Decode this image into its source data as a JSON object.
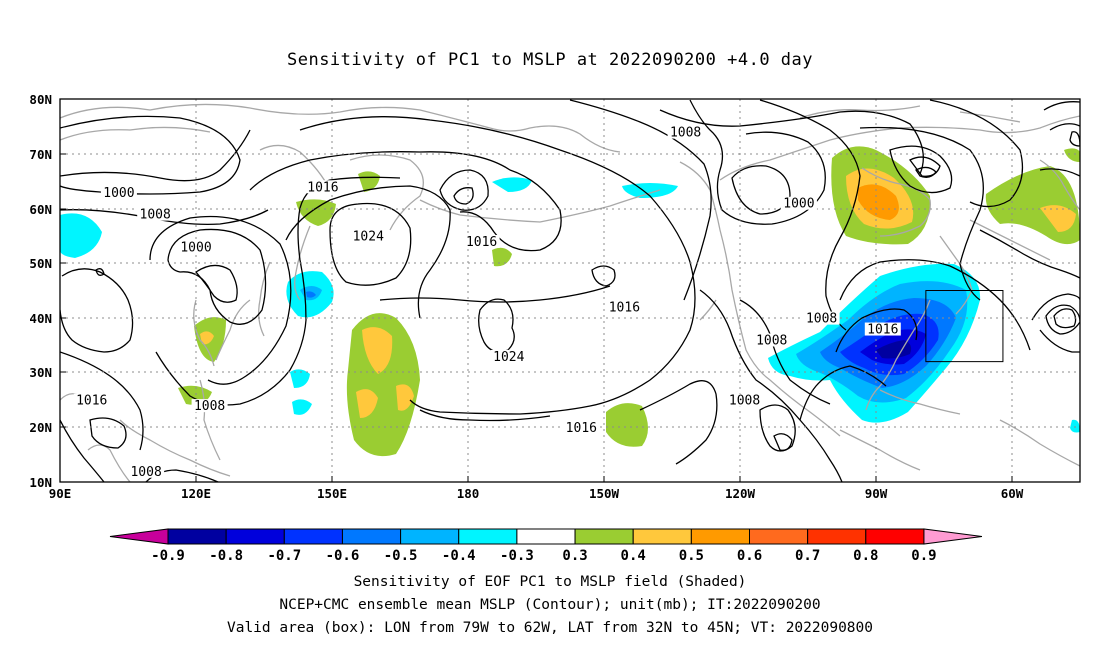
{
  "title": "Sensitivity of PC1 to MSLP at 2022090200 +4.0 day",
  "map": {
    "lat_labels": [
      "80N",
      "70N",
      "60N",
      "50N",
      "40N",
      "30N",
      "20N",
      "10N"
    ],
    "lon_labels": [
      "90E",
      "120E",
      "150E",
      "180",
      "150W",
      "120W",
      "90W",
      "60W"
    ],
    "valid_box": {
      "lon": [
        -79,
        -62
      ],
      "lat": [
        32,
        45
      ]
    }
  },
  "contour_labels": [
    {
      "text": "1000",
      "lon": 103,
      "lat": 62.5
    },
    {
      "text": "1008",
      "lon": 111,
      "lat": 58.5
    },
    {
      "text": "1000",
      "lon": 120,
      "lat": 52.5
    },
    {
      "text": "1016",
      "lon": 148,
      "lat": 63.5
    },
    {
      "text": "1024",
      "lon": 158,
      "lat": 54.5
    },
    {
      "text": "1016",
      "lon": 183,
      "lat": 53.5
    },
    {
      "text": "1008",
      "lon": -132,
      "lat": 73.5
    },
    {
      "text": "1000",
      "lon": -107,
      "lat": 60.5
    },
    {
      "text": "1016",
      "lon": -145.5,
      "lat": 41.5
    },
    {
      "text": "1024",
      "lon": -171,
      "lat": 32.5
    },
    {
      "text": "1008",
      "lon": -102,
      "lat": 39.5
    },
    {
      "text": "1008",
      "lon": -113,
      "lat": 35.5
    },
    {
      "text": "1016",
      "lon": -88.5,
      "lat": 37.5
    },
    {
      "text": "1008",
      "lon": -119,
      "lat": 24.5
    },
    {
      "text": "1016",
      "lon": -155,
      "lat": 19.5
    },
    {
      "text": "1016",
      "lon": 97,
      "lat": 24.5
    },
    {
      "text": "1008",
      "lon": 123,
      "lat": 23.5
    },
    {
      "text": "1008",
      "lon": 109,
      "lat": 11.5
    }
  ],
  "colorbar": {
    "labels": [
      "-0.9",
      "-0.8",
      "-0.7",
      "-0.6",
      "-0.5",
      "-0.4",
      "-0.3",
      "0.3",
      "0.4",
      "0.5",
      "0.6",
      "0.7",
      "0.8",
      "0.9"
    ],
    "colors": [
      "#0000a0",
      "#0000dc",
      "#0032ff",
      "#0078ff",
      "#00b4ff",
      "#00f5ff",
      "#ffffff",
      "#9acd32",
      "#ffc83c",
      "#ff9a00",
      "#ff6a1e",
      "#ff3200",
      "#ff0000"
    ],
    "low_end_color": "#c8009b",
    "high_end_color": "#ff9bd2"
  },
  "captions": {
    "line1": "Sensitivity of EOF PC1 to MSLP field (Shaded)",
    "line2": "NCEP+CMC ensemble mean MSLP (Contour); unit(mb); IT:2022090200",
    "line3": "Valid area (box): LON from 79W to 62W, LAT from 32N to 45N; VT: 2022090800"
  }
}
